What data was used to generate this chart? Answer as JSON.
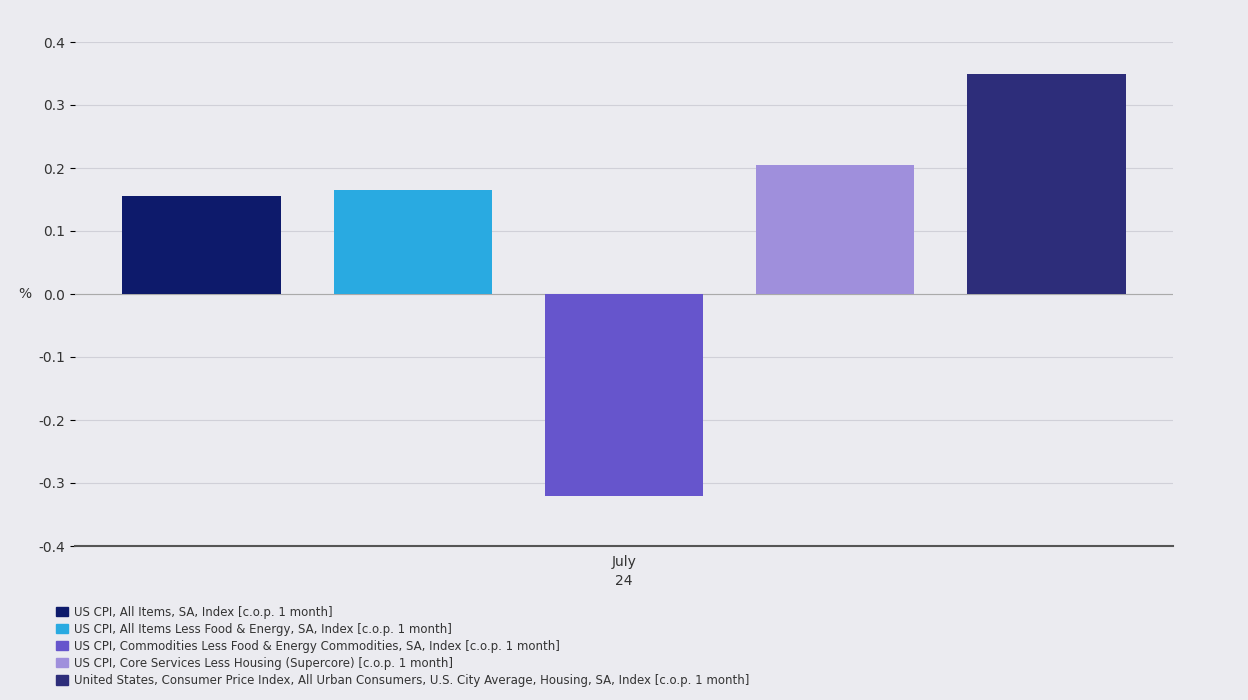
{
  "values": [
    0.155,
    0.165,
    -0.32,
    0.205,
    0.35
  ],
  "colors": [
    "#0d1a6b",
    "#29aae1",
    "#6655cc",
    "#9f8fdc",
    "#2d2d7a"
  ],
  "x_positions": [
    0,
    1,
    2,
    3,
    4
  ],
  "ylim": [
    -0.4,
    0.4
  ],
  "yticks": [
    -0.4,
    -0.3,
    -0.2,
    -0.1,
    0.0,
    0.1,
    0.2,
    0.3,
    0.4
  ],
  "xlabel_main": "July",
  "xlabel_sub": "24",
  "ylabel": "%",
  "background_color": "#ebebf0",
  "plot_bg_color": "#ebebf0",
  "grid_color": "#d0d0d8",
  "legend_items": [
    {
      "label": "US CPI, All Items, SA, Index [c.o.p. 1 month]",
      "color": "#0d1a6b"
    },
    {
      "label": "US CPI, All Items Less Food & Energy, SA, Index [c.o.p. 1 month]",
      "color": "#29aae1"
    },
    {
      "label": "US CPI, Commodities Less Food & Energy Commodities, SA, Index [c.o.p. 1 month]",
      "color": "#6655cc"
    },
    {
      "label": "US CPI, Core Services Less Housing (Supercore) [c.o.p. 1 month]",
      "color": "#9f8fdc"
    },
    {
      "label": "United States, Consumer Price Index, All Urban Consumers, U.S. City Average, Housing, SA, Index [c.o.p. 1 month]",
      "color": "#2d2d7a"
    }
  ],
  "bar_width": 0.75,
  "tick_fontsize": 10,
  "legend_fontsize": 8.5,
  "xlabel_fontsize": 10,
  "spine_color": "#555555",
  "zero_line_color": "#aaaaaa"
}
